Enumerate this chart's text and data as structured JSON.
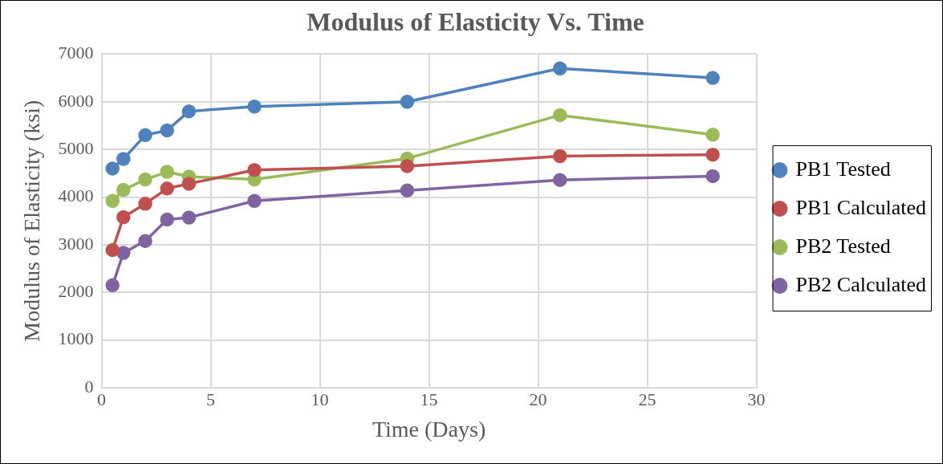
{
  "chart_data": {
    "type": "line",
    "title": "Modulus of Elasticity Vs. Time",
    "xlabel": "Time (Days)",
    "ylabel": "Modulus of Elasticity (ksi)",
    "x": [
      0.5,
      1,
      2,
      3,
      4,
      7,
      14,
      21,
      28
    ],
    "series": [
      {
        "name": "PB1 Tested",
        "color": "#4f81bd",
        "values": [
          4600,
          4800,
          5300,
          5400,
          5800,
          5900,
          6000,
          6700,
          6500
        ]
      },
      {
        "name": "PB1 Calculated",
        "color": "#c0504d",
        "values": [
          2890,
          3580,
          3860,
          4180,
          4280,
          4570,
          4650,
          4860,
          4890
        ]
      },
      {
        "name": "PB2 Tested",
        "color": "#9bbb59",
        "values": [
          3920,
          4150,
          4370,
          4530,
          4430,
          4370,
          4810,
          5720,
          5310
        ]
      },
      {
        "name": "PB2 Calculated",
        "color": "#8064a2",
        "values": [
          2150,
          2830,
          3080,
          3530,
          3570,
          3920,
          4140,
          4360,
          4440
        ]
      }
    ],
    "xlim": [
      0,
      30
    ],
    "xticks": [
      0,
      5,
      10,
      15,
      20,
      25,
      30
    ],
    "ylim": [
      0,
      7000
    ],
    "yticks": [
      0,
      1000,
      2000,
      3000,
      4000,
      5000,
      6000,
      7000
    ],
    "grid": true,
    "legend": "right",
    "marker": "circle",
    "line_style": "solid"
  }
}
